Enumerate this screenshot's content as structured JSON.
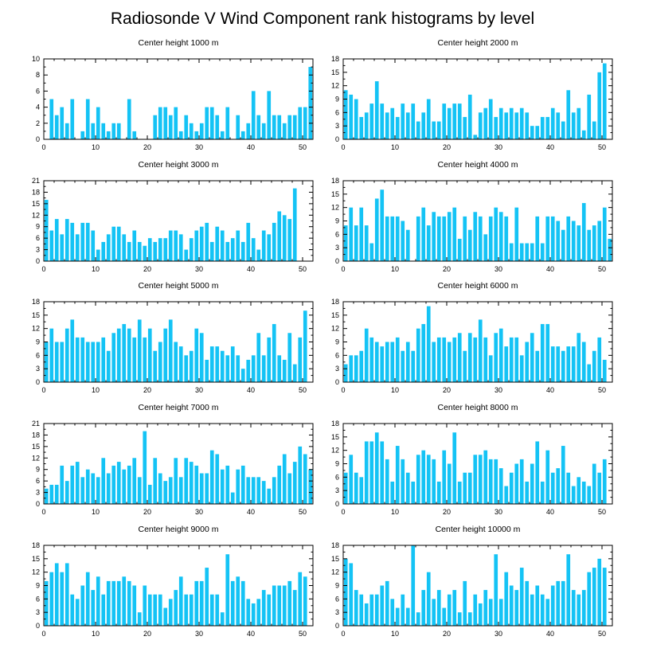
{
  "figure": {
    "title": "Radiosonde V Wind Component rank histograms by level",
    "bar_color": "#14c3f5"
  },
  "chart_data": [
    {
      "type": "bar",
      "title": "Center height 1000 m",
      "xlabel": "",
      "ylabel": "",
      "xlim": [
        0,
        52
      ],
      "ylim": [
        0,
        10
      ],
      "xticks": [
        0,
        10,
        20,
        30,
        40,
        50
      ],
      "yticks": [
        0,
        2,
        4,
        6,
        8,
        10
      ],
      "x": [
        0,
        1,
        2,
        3,
        4,
        5,
        6,
        7,
        8,
        9,
        10,
        11,
        12,
        13,
        14,
        15,
        16,
        17,
        18,
        19,
        20,
        21,
        22,
        23,
        24,
        25,
        26,
        27,
        28,
        29,
        30,
        31,
        32,
        33,
        34,
        35,
        36,
        37,
        38,
        39,
        40,
        41,
        42,
        43,
        44,
        45,
        46,
        47,
        48,
        49,
        50,
        51
      ],
      "values": [
        0,
        5,
        3,
        4,
        2,
        5,
        0,
        1,
        5,
        2,
        4,
        2,
        1,
        2,
        2,
        0,
        5,
        1,
        0,
        0,
        0,
        3,
        4,
        4,
        3,
        4,
        1,
        3,
        2,
        1,
        2,
        4,
        4,
        3,
        1,
        4,
        0,
        3,
        1,
        2,
        6,
        3,
        2,
        6,
        3,
        3,
        2,
        3,
        3,
        4,
        4,
        9
      ]
    },
    {
      "type": "bar",
      "title": "Center height 2000 m",
      "xlabel": "",
      "ylabel": "",
      "xlim": [
        0,
        52
      ],
      "ylim": [
        0,
        18
      ],
      "xticks": [
        0,
        10,
        20,
        30,
        40,
        50
      ],
      "yticks": [
        0,
        3,
        6,
        9,
        12,
        15,
        18
      ],
      "x": [
        0,
        1,
        2,
        3,
        4,
        5,
        6,
        7,
        8,
        9,
        10,
        11,
        12,
        13,
        14,
        15,
        16,
        17,
        18,
        19,
        20,
        21,
        22,
        23,
        24,
        25,
        26,
        27,
        28,
        29,
        30,
        31,
        32,
        33,
        34,
        35,
        36,
        37,
        38,
        39,
        40,
        41,
        42,
        43,
        44,
        45,
        46,
        47,
        48,
        49,
        50,
        51
      ],
      "values": [
        11,
        10,
        9,
        5,
        6,
        8,
        13,
        8,
        6,
        7,
        5,
        8,
        6,
        8,
        4,
        6,
        9,
        4,
        4,
        8,
        7,
        8,
        8,
        5,
        10,
        1,
        6,
        7,
        9,
        5,
        7,
        6,
        7,
        6,
        7,
        6,
        3,
        3,
        5,
        5,
        7,
        6,
        4,
        11,
        6,
        7,
        2,
        10,
        4,
        15,
        17,
        0
      ]
    },
    {
      "type": "bar",
      "title": "Center height 3000 m",
      "xlabel": "",
      "ylabel": "",
      "xlim": [
        0,
        52
      ],
      "ylim": [
        0,
        21
      ],
      "xticks": [
        0,
        10,
        20,
        30,
        40,
        50
      ],
      "yticks": [
        0,
        3,
        6,
        9,
        12,
        15,
        18,
        21
      ],
      "x": [
        0,
        1,
        2,
        3,
        4,
        5,
        6,
        7,
        8,
        9,
        10,
        11,
        12,
        13,
        14,
        15,
        16,
        17,
        18,
        19,
        20,
        21,
        22,
        23,
        24,
        25,
        26,
        27,
        28,
        29,
        30,
        31,
        32,
        33,
        34,
        35,
        36,
        37,
        38,
        39,
        40,
        41,
        42,
        43,
        44,
        45,
        46,
        47,
        48,
        49,
        50,
        51
      ],
      "values": [
        16,
        8,
        11,
        7,
        11,
        10,
        7,
        10,
        10,
        8,
        3,
        5,
        7,
        9,
        9,
        7,
        5,
        8,
        5,
        4,
        6,
        5,
        6,
        6,
        8,
        8,
        7,
        3,
        6,
        8,
        9,
        10,
        5,
        9,
        8,
        5,
        6,
        8,
        5,
        10,
        6,
        3,
        8,
        7,
        10,
        13,
        12,
        11,
        19,
        0,
        0,
        0
      ]
    },
    {
      "type": "bar",
      "title": "Center height 4000 m",
      "xlabel": "",
      "ylabel": "",
      "xlim": [
        0,
        52
      ],
      "ylim": [
        0,
        18
      ],
      "xticks": [
        0,
        10,
        20,
        30,
        40,
        50
      ],
      "yticks": [
        0,
        3,
        6,
        9,
        12,
        15,
        18
      ],
      "x": [
        0,
        1,
        2,
        3,
        4,
        5,
        6,
        7,
        8,
        9,
        10,
        11,
        12,
        13,
        14,
        15,
        16,
        17,
        18,
        19,
        20,
        21,
        22,
        23,
        24,
        25,
        26,
        27,
        28,
        29,
        30,
        31,
        32,
        33,
        34,
        35,
        36,
        37,
        38,
        39,
        40,
        41,
        42,
        43,
        44,
        45,
        46,
        47,
        48,
        49,
        50,
        51
      ],
      "values": [
        8,
        12,
        8,
        12,
        8,
        4,
        14,
        16,
        10,
        10,
        10,
        9,
        7,
        0,
        10,
        12,
        8,
        11,
        10,
        10,
        11,
        12,
        5,
        10,
        7,
        11,
        10,
        6,
        10,
        12,
        11,
        10,
        4,
        12,
        4,
        4,
        4,
        10,
        4,
        10,
        10,
        9,
        7,
        10,
        9,
        8,
        13,
        7,
        8,
        9,
        12,
        5
      ]
    },
    {
      "type": "bar",
      "title": "Center height 5000 m",
      "xlabel": "",
      "ylabel": "",
      "xlim": [
        0,
        52
      ],
      "ylim": [
        0,
        18
      ],
      "xticks": [
        0,
        10,
        20,
        30,
        40,
        50
      ],
      "yticks": [
        0,
        3,
        6,
        9,
        12,
        15,
        18
      ],
      "x": [
        0,
        1,
        2,
        3,
        4,
        5,
        6,
        7,
        8,
        9,
        10,
        11,
        12,
        13,
        14,
        15,
        16,
        17,
        18,
        19,
        20,
        21,
        22,
        23,
        24,
        25,
        26,
        27,
        28,
        29,
        30,
        31,
        32,
        33,
        34,
        35,
        36,
        37,
        38,
        39,
        40,
        41,
        42,
        43,
        44,
        45,
        46,
        47,
        48,
        49,
        50,
        51
      ],
      "values": [
        9,
        12,
        9,
        9,
        12,
        14,
        10,
        10,
        9,
        9,
        9,
        10,
        7,
        11,
        12,
        13,
        12,
        10,
        14,
        10,
        12,
        7,
        9,
        12,
        14,
        9,
        8,
        6,
        7,
        12,
        11,
        5,
        8,
        8,
        7,
        6,
        8,
        6,
        3,
        5,
        6,
        11,
        6,
        10,
        13,
        6,
        5,
        11,
        4,
        10,
        16,
        0
      ]
    },
    {
      "type": "bar",
      "title": "Center height 6000 m",
      "xlabel": "",
      "ylabel": "",
      "xlim": [
        0,
        52
      ],
      "ylim": [
        0,
        18
      ],
      "xticks": [
        0,
        10,
        20,
        30,
        40,
        50
      ],
      "yticks": [
        0,
        3,
        6,
        9,
        12,
        15,
        18
      ],
      "x": [
        0,
        1,
        2,
        3,
        4,
        5,
        6,
        7,
        8,
        9,
        10,
        11,
        12,
        13,
        14,
        15,
        16,
        17,
        18,
        19,
        20,
        21,
        22,
        23,
        24,
        25,
        26,
        27,
        28,
        29,
        30,
        31,
        32,
        33,
        34,
        35,
        36,
        37,
        38,
        39,
        40,
        41,
        42,
        43,
        44,
        45,
        46,
        47,
        48,
        49,
        50,
        51
      ],
      "values": [
        4,
        6,
        6,
        7,
        12,
        10,
        9,
        8,
        9,
        9,
        10,
        7,
        9,
        7,
        12,
        13,
        17,
        9,
        10,
        10,
        9,
        10,
        11,
        7,
        11,
        10,
        14,
        10,
        6,
        11,
        12,
        8,
        10,
        10,
        6,
        9,
        11,
        7,
        13,
        13,
        8,
        8,
        7,
        8,
        8,
        11,
        9,
        4,
        7,
        10,
        5,
        0
      ]
    },
    {
      "type": "bar",
      "title": "Center height 7000 m",
      "xlabel": "",
      "ylabel": "",
      "xlim": [
        0,
        52
      ],
      "ylim": [
        0,
        21
      ],
      "xticks": [
        0,
        10,
        20,
        30,
        40,
        50
      ],
      "yticks": [
        0,
        3,
        6,
        9,
        12,
        15,
        18,
        21
      ],
      "x": [
        0,
        1,
        2,
        3,
        4,
        5,
        6,
        7,
        8,
        9,
        10,
        11,
        12,
        13,
        14,
        15,
        16,
        17,
        18,
        19,
        20,
        21,
        22,
        23,
        24,
        25,
        26,
        27,
        28,
        29,
        30,
        31,
        32,
        33,
        34,
        35,
        36,
        37,
        38,
        39,
        40,
        41,
        42,
        43,
        44,
        45,
        46,
        47,
        48,
        49,
        50,
        51
      ],
      "values": [
        4,
        5,
        5,
        10,
        6,
        10,
        11,
        7,
        9,
        8,
        7,
        12,
        8,
        10,
        11,
        9,
        10,
        12,
        7,
        19,
        5,
        12,
        8,
        6,
        7,
        12,
        7,
        12,
        11,
        10,
        8,
        8,
        14,
        13,
        9,
        10,
        3,
        9,
        10,
        7,
        7,
        7,
        6,
        4,
        7,
        10,
        13,
        8,
        11,
        15,
        13,
        9
      ]
    },
    {
      "type": "bar",
      "title": "Center height 8000 m",
      "xlabel": "",
      "ylabel": "",
      "xlim": [
        0,
        52
      ],
      "ylim": [
        0,
        18
      ],
      "xticks": [
        0,
        10,
        20,
        30,
        40,
        50
      ],
      "yticks": [
        0,
        3,
        6,
        9,
        12,
        15,
        18
      ],
      "x": [
        0,
        1,
        2,
        3,
        4,
        5,
        6,
        7,
        8,
        9,
        10,
        11,
        12,
        13,
        14,
        15,
        16,
        17,
        18,
        19,
        20,
        21,
        22,
        23,
        24,
        25,
        26,
        27,
        28,
        29,
        30,
        31,
        32,
        33,
        34,
        35,
        36,
        37,
        38,
        39,
        40,
        41,
        42,
        43,
        44,
        45,
        46,
        47,
        48,
        49,
        50,
        51
      ],
      "values": [
        7,
        11,
        7,
        6,
        14,
        14,
        16,
        14,
        10,
        5,
        13,
        10,
        7,
        5,
        11,
        12,
        11,
        10,
        5,
        12,
        9,
        16,
        5,
        7,
        7,
        11,
        11,
        12,
        10,
        10,
        8,
        4,
        7,
        9,
        10,
        5,
        9,
        14,
        5,
        12,
        7,
        8,
        13,
        7,
        4,
        6,
        5,
        4,
        9,
        7,
        10,
        0
      ]
    },
    {
      "type": "bar",
      "title": "Center height 9000 m",
      "xlabel": "",
      "ylabel": "",
      "xlim": [
        0,
        52
      ],
      "ylim": [
        0,
        18
      ],
      "xticks": [
        0,
        10,
        20,
        30,
        40,
        50
      ],
      "yticks": [
        0,
        3,
        6,
        9,
        12,
        15,
        18
      ],
      "x": [
        0,
        1,
        2,
        3,
        4,
        5,
        6,
        7,
        8,
        9,
        10,
        11,
        12,
        13,
        14,
        15,
        16,
        17,
        18,
        19,
        20,
        21,
        22,
        23,
        24,
        25,
        26,
        27,
        28,
        29,
        30,
        31,
        32,
        33,
        34,
        35,
        36,
        37,
        38,
        39,
        40,
        41,
        42,
        43,
        44,
        45,
        46,
        47,
        48,
        49,
        50,
        51
      ],
      "values": [
        10,
        12,
        14,
        12,
        14,
        7,
        6,
        9,
        12,
        8,
        11,
        7,
        10,
        10,
        10,
        11,
        10,
        9,
        3,
        9,
        7,
        7,
        7,
        4,
        6,
        8,
        11,
        7,
        7,
        10,
        10,
        13,
        7,
        7,
        3,
        16,
        10,
        11,
        10,
        6,
        5,
        6,
        8,
        7,
        9,
        9,
        9,
        10,
        8,
        12,
        11,
        0
      ]
    },
    {
      "type": "bar",
      "title": "Center height 10000 m",
      "xlabel": "",
      "ylabel": "",
      "xlim": [
        0,
        52
      ],
      "ylim": [
        0,
        18
      ],
      "xticks": [
        0,
        10,
        20,
        30,
        40,
        50
      ],
      "yticks": [
        0,
        3,
        6,
        9,
        12,
        15,
        18
      ],
      "x": [
        0,
        1,
        2,
        3,
        4,
        5,
        6,
        7,
        8,
        9,
        10,
        11,
        12,
        13,
        14,
        15,
        16,
        17,
        18,
        19,
        20,
        21,
        22,
        23,
        24,
        25,
        26,
        27,
        28,
        29,
        30,
        31,
        32,
        33,
        34,
        35,
        36,
        37,
        38,
        39,
        40,
        41,
        42,
        43,
        44,
        45,
        46,
        47,
        48,
        49,
        50,
        51
      ],
      "values": [
        15,
        14,
        8,
        7,
        5,
        7,
        7,
        9,
        10,
        6,
        4,
        7,
        4,
        18,
        3,
        8,
        12,
        6,
        8,
        4,
        7,
        8,
        3,
        10,
        3,
        7,
        5,
        8,
        6,
        16,
        6,
        12,
        9,
        8,
        13,
        10,
        7,
        9,
        7,
        6,
        9,
        10,
        10,
        16,
        8,
        7,
        8,
        12,
        13,
        15,
        13,
        0
      ]
    }
  ]
}
